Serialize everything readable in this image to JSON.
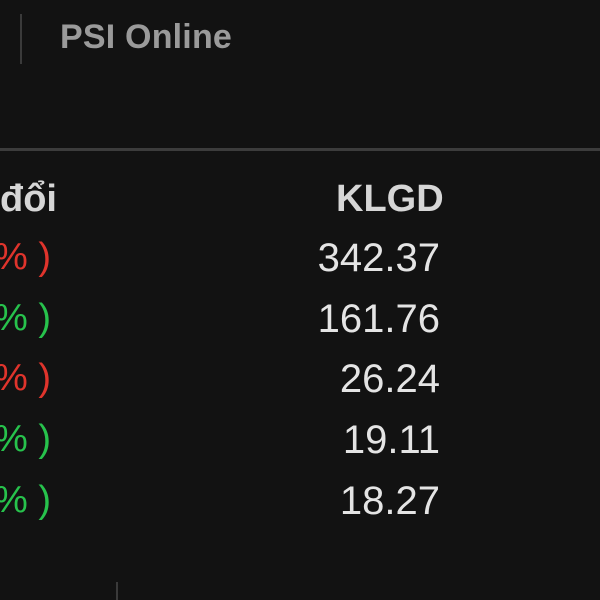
{
  "header": {
    "title": "PSI Online"
  },
  "table": {
    "columns": {
      "change_label": "đổi",
      "volume_label": "KLGD"
    },
    "rows": [
      {
        "change_suffix": "% )",
        "trend": "down",
        "volume": "342.37"
      },
      {
        "change_suffix": "% )",
        "trend": "up",
        "volume": "161.76"
      },
      {
        "change_suffix": "% )",
        "trend": "down",
        "volume": "26.24"
      },
      {
        "change_suffix": "% )",
        "trend": "up",
        "volume": "19.11"
      },
      {
        "change_suffix": "% )",
        "trend": "up",
        "volume": "18.27"
      }
    ]
  },
  "colors": {
    "up": "#27c24c",
    "down": "#e0342c",
    "background": "#121212"
  }
}
